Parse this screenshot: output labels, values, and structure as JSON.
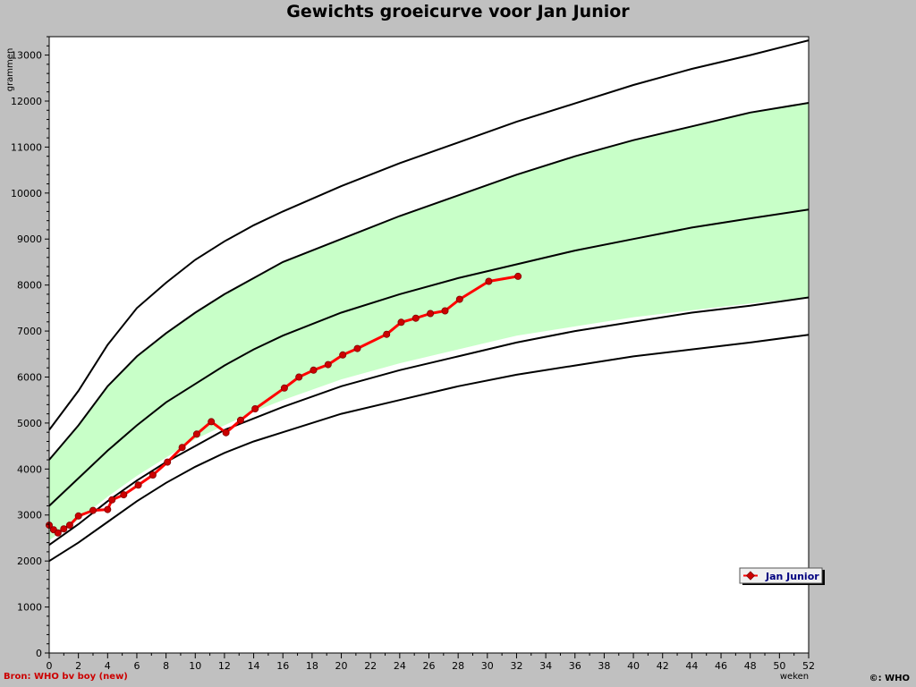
{
  "chart_data": {
    "type": "line",
    "title": "Gewichts groeicurve voor Jan Junior",
    "xlabel": "weken",
    "ylabel": "grammen",
    "xlim": [
      0,
      52
    ],
    "ylim": [
      0,
      13400
    ],
    "x_ticks": [
      0,
      2,
      4,
      6,
      8,
      10,
      12,
      14,
      16,
      18,
      20,
      22,
      24,
      26,
      28,
      30,
      32,
      34,
      36,
      38,
      40,
      42,
      44,
      46,
      48,
      50,
      52
    ],
    "y_ticks": [
      0,
      1000,
      2000,
      3000,
      4000,
      5000,
      6000,
      7000,
      8000,
      9000,
      10000,
      11000,
      12000,
      13000
    ],
    "grid": false,
    "legend_position": "bottom-right",
    "band": {
      "color": "#c8ffc8",
      "lower_x": [
        0,
        2,
        4,
        6,
        8,
        10,
        12,
        14,
        16,
        20,
        24,
        28,
        32,
        36,
        40,
        44,
        48,
        52
      ],
      "lower_y": [
        2450,
        2900,
        3400,
        3850,
        4250,
        4650,
        4950,
        5250,
        5500,
        5950,
        6300,
        6600,
        6900,
        7100,
        7300,
        7450,
        7600,
        7730
      ],
      "upper_x": [
        0,
        2,
        4,
        6,
        8,
        10,
        12,
        14,
        16,
        20,
        24,
        28,
        32,
        36,
        40,
        44,
        48,
        52
      ],
      "upper_y": [
        4200,
        4950,
        5800,
        6450,
        6950,
        7400,
        7800,
        8150,
        8500,
        9000,
        9500,
        9950,
        10400,
        10800,
        11150,
        11450,
        11750,
        11960
      ]
    },
    "reference_curves": [
      {
        "x": [
          0,
          2,
          4,
          6,
          8,
          10,
          12,
          14,
          16,
          20,
          24,
          28,
          32,
          36,
          40,
          44,
          48,
          52
        ],
        "y": [
          2000,
          2400,
          2850,
          3300,
          3700,
          4050,
          4350,
          4600,
          4800,
          5200,
          5500,
          5800,
          6050,
          6250,
          6450,
          6600,
          6750,
          6920
        ]
      },
      {
        "x": [
          0,
          2,
          4,
          6,
          8,
          10,
          12,
          14,
          16,
          20,
          24,
          28,
          32,
          36,
          40,
          44,
          48,
          52
        ],
        "y": [
          2350,
          2800,
          3300,
          3750,
          4150,
          4500,
          4850,
          5100,
          5350,
          5800,
          6150,
          6450,
          6750,
          7000,
          7200,
          7400,
          7550,
          7730
        ]
      },
      {
        "x": [
          0,
          2,
          4,
          6,
          8,
          10,
          12,
          14,
          16,
          20,
          24,
          28,
          32,
          36,
          40,
          44,
          48,
          52
        ],
        "y": [
          3200,
          3800,
          4400,
          4950,
          5450,
          5850,
          6250,
          6600,
          6900,
          7400,
          7800,
          8150,
          8450,
          8750,
          9000,
          9250,
          9450,
          9640
        ]
      },
      {
        "x": [
          0,
          2,
          4,
          6,
          8,
          10,
          12,
          14,
          16,
          20,
          24,
          28,
          32,
          36,
          40,
          44,
          48,
          52
        ],
        "y": [
          4200,
          4950,
          5800,
          6450,
          6950,
          7400,
          7800,
          8150,
          8500,
          9000,
          9500,
          9950,
          10400,
          10800,
          11150,
          11450,
          11750,
          11960
        ]
      },
      {
        "x": [
          0,
          2,
          4,
          6,
          8,
          10,
          12,
          14,
          16,
          20,
          24,
          28,
          32,
          36,
          40,
          44,
          48,
          52
        ],
        "y": [
          4850,
          5700,
          6700,
          7500,
          8050,
          8550,
          8950,
          9300,
          9600,
          10150,
          10650,
          11100,
          11550,
          11950,
          12350,
          12700,
          13000,
          13320
        ]
      }
    ],
    "series": [
      {
        "name": "Jan Junior",
        "color": "#ff0000",
        "marker_color": "#cc0000",
        "x": [
          0,
          0.3,
          0.6,
          1,
          1.4,
          2,
          3,
          4,
          4.3,
          5.1,
          6.1,
          7.1,
          8.1,
          9.1,
          10.1,
          11.1,
          12.1,
          13.1,
          14.1,
          16.1,
          17.1,
          18.1,
          19.1,
          20.1,
          21.1,
          23.1,
          24.1,
          25.1,
          26.1,
          27.1,
          28.1,
          30.1,
          32.1
        ],
        "y": [
          2780,
          2680,
          2610,
          2700,
          2780,
          2980,
          3100,
          3120,
          3330,
          3440,
          3650,
          3870,
          4150,
          4470,
          4760,
          5030,
          4790,
          5060,
          5310,
          5760,
          6000,
          6150,
          6270,
          6480,
          6620,
          6930,
          7190,
          7280,
          7380,
          7440,
          7690,
          8080,
          8190
        ]
      }
    ],
    "source": "Bron: WHO bv boy (new)",
    "copyright": "©: WHO"
  }
}
